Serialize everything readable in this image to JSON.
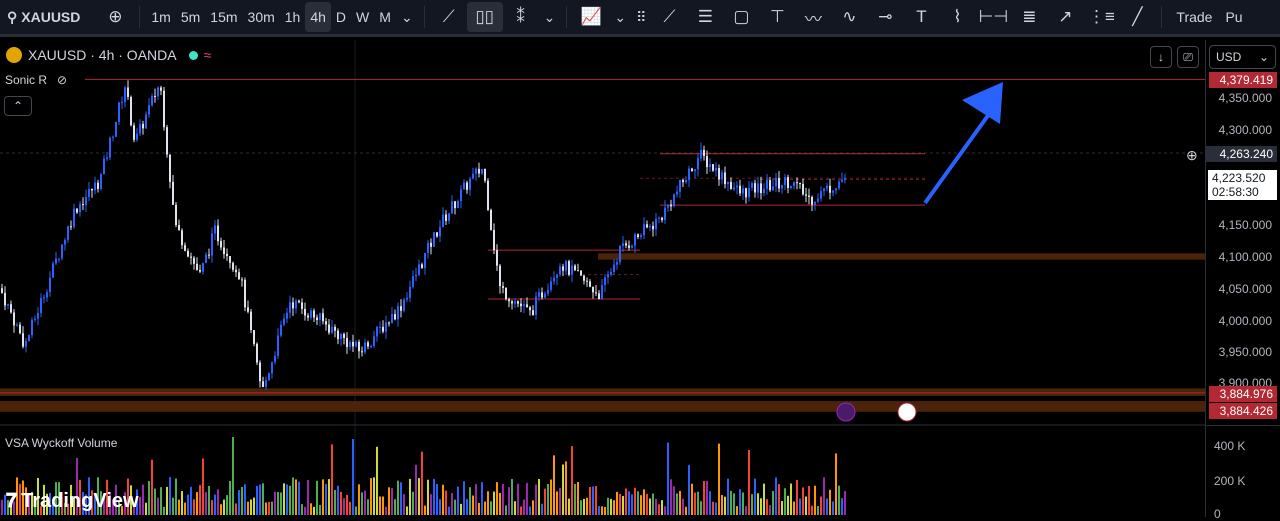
{
  "toolbar": {
    "symbol": "XAUUSD",
    "intervals": [
      "1m",
      "5m",
      "15m",
      "30m",
      "1h",
      "4h",
      "D",
      "W",
      "M"
    ],
    "active_interval": "4h",
    "trade_label": "Trade",
    "publish_label": "Pu"
  },
  "legend": {
    "title": "XAUUSD · 4h · OANDA",
    "indicator": "Sonic R",
    "volume_indicator": "VSA Wyckoff Volume"
  },
  "currency": "USD",
  "price_axis": {
    "ticks": [
      "4,350.000",
      "4,300.000",
      "4,150.000",
      "4,100.000",
      "4,050.000",
      "4,000.000",
      "3,950.000",
      "3,900.000"
    ],
    "labels": {
      "top_line": "4,379.419",
      "crosshair": "4,263.240",
      "last_price": "4,223.520",
      "countdown": "02:58:30",
      "support_1": "3,884.976",
      "support_2": "3,884.426"
    }
  },
  "volume_axis": {
    "ticks": [
      "400 K",
      "200 K",
      "0"
    ]
  },
  "watermark": "TradingView",
  "colors": {
    "bull": "#2962ff",
    "bear": "#e0e3eb",
    "line": "#b22833",
    "zone": "#4a2308",
    "arrow": "#2962ff"
  },
  "chart_data": {
    "type": "candlestick",
    "symbol": "XAUUSD",
    "interval": "4h",
    "ylim": [
      3870,
      4390
    ],
    "price_path": [
      4050,
      3960,
      4175,
      4220,
      4370,
      4280,
      4375,
      4150,
      4070,
      4140,
      4070,
      3885,
      4030,
      4000,
      3950,
      4020,
      4150,
      4220,
      4240,
      4050,
      4010,
      4090,
      4040,
      4110,
      4160,
      4260,
      4200,
      4220,
      4190,
      4224
    ],
    "horizontal_levels": [
      4379.419,
      3884.976,
      3884.426
    ],
    "zones": [
      [
        4095,
        4105
      ],
      [
        3880,
        3892
      ],
      [
        3855,
        3872
      ]
    ],
    "ranges": [
      {
        "top": 4110,
        "bottom": 4033
      },
      {
        "top": 4262,
        "bottom": 4181
      }
    ]
  }
}
